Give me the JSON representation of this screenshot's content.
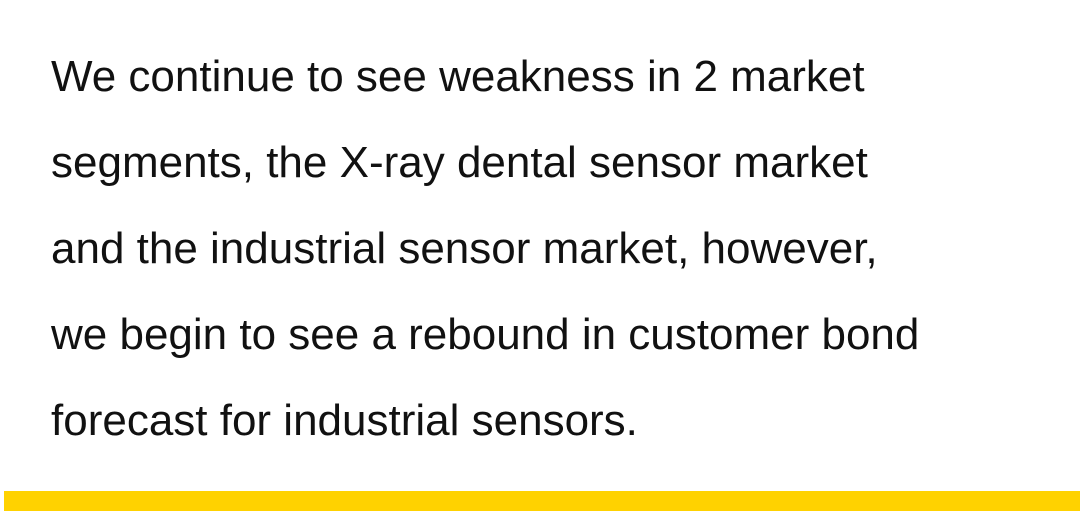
{
  "quote": {
    "lines": [
      "We continue to see weakness in 2 market",
      "segments, the X-ray dental sensor market",
      "and the industrial sensor market, however,",
      "we begin to see a rebound in customer bond",
      "forecast for industrial sensors."
    ]
  },
  "colors": {
    "text": "#111111",
    "background": "#ffffff",
    "accent_bar": "#FFD200"
  }
}
